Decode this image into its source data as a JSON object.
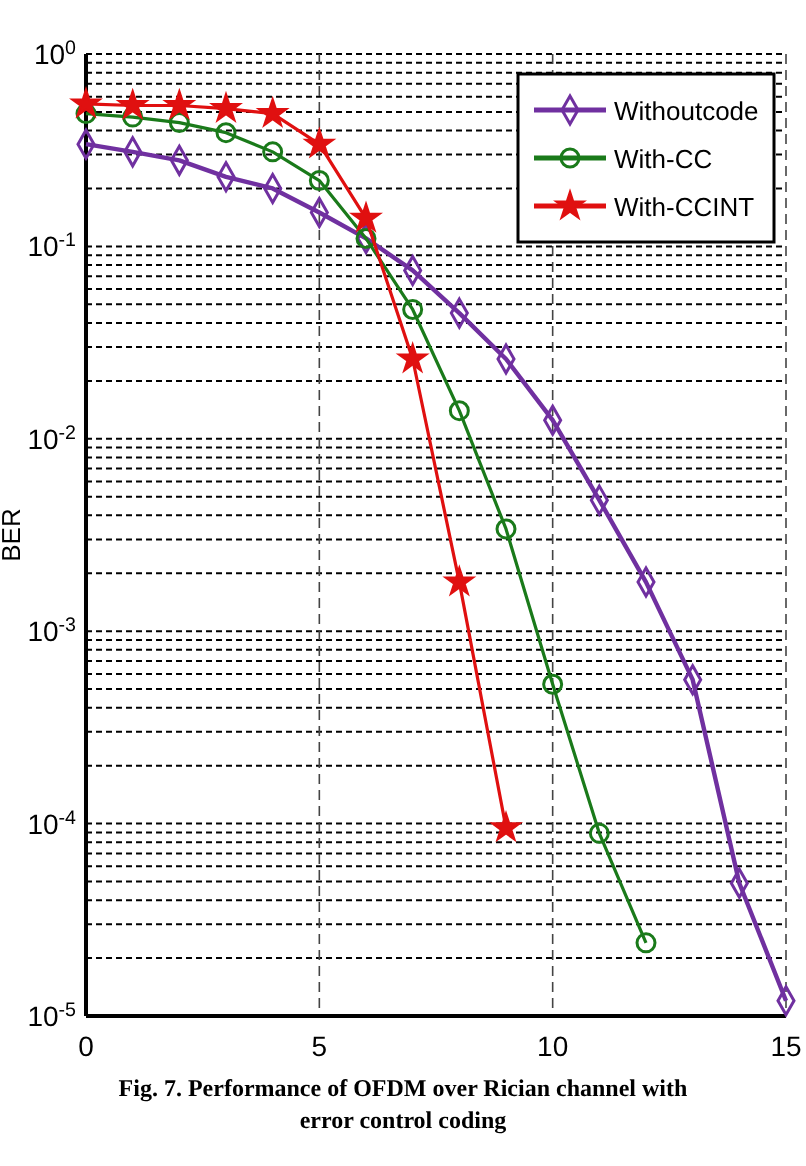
{
  "chart_data": {
    "type": "line",
    "ylabel": "BER",
    "log": "y",
    "grid": true,
    "legend": "top right",
    "line_style": "solid",
    "x": [
      0,
      1,
      2,
      3,
      4,
      5,
      6,
      7,
      8,
      9,
      10,
      11,
      12,
      13,
      14,
      15
    ],
    "xlim": [
      0,
      15
    ],
    "xticks": [
      0,
      5,
      10,
      15
    ],
    "ylim": [
      1e-05,
      1
    ],
    "yticks": [
      {
        "value": 1,
        "label": "10$^{0}$"
      },
      {
        "value": 0.1,
        "label": "10$^{-1}$"
      },
      {
        "value": 0.01,
        "label": "10$^{-2}$"
      },
      {
        "value": 0.001,
        "label": "10$^{-3}$"
      },
      {
        "value": 0.0001,
        "label": "10$^{-4}$"
      },
      {
        "value": 1e-05,
        "label": "10$^{-5}$"
      }
    ],
    "series": [
      {
        "name": "Withoutcode",
        "color": "#7030a0",
        "marker": "diamond",
        "values": [
          0.34,
          0.31,
          0.28,
          0.23,
          0.2,
          0.15,
          0.11,
          0.075,
          0.045,
          0.026,
          0.0125,
          0.0048,
          0.0018,
          0.00056,
          4.9e-05,
          1.2e-05
        ]
      },
      {
        "name": "With-CC",
        "color": "#1a7a1a",
        "marker": "circle",
        "values": [
          0.49,
          0.47,
          0.44,
          0.39,
          0.31,
          0.22,
          0.11,
          0.047,
          0.014,
          0.0034,
          0.00053,
          8.9e-05,
          2.4e-05,
          null,
          null,
          null
        ]
      },
      {
        "name": "With-CCINT",
        "color": "#e01010",
        "marker": "star",
        "values": [
          0.55,
          0.54,
          0.54,
          0.52,
          0.49,
          0.34,
          0.14,
          0.026,
          0.0018,
          9.5e-05,
          null,
          null,
          null,
          null,
          null,
          null
        ]
      }
    ],
    "annotations": [
      "Fig. 7. Performance of OFDM over Rician channel with error control coding"
    ]
  }
}
